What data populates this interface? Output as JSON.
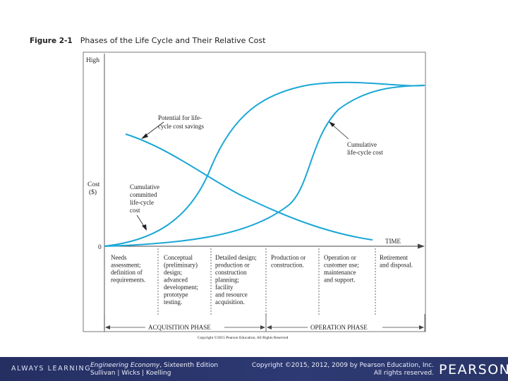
{
  "figure": {
    "number": "Figure 2-1",
    "title": "Phases of the Life Cycle and Their Relative Cost"
  },
  "axis": {
    "y_high": "High",
    "y_label_line1": "Cost",
    "y_label_line2": "($)",
    "y_zero": "0",
    "x_arrow_label": "TIME"
  },
  "annotations": {
    "potential": [
      "Potential for life-",
      "cycle cost savings"
    ],
    "cumulative_cost": [
      "Cumulative",
      "life-cycle cost"
    ],
    "committed": [
      "Cumulative",
      "committed",
      "life-cycle",
      "cost"
    ]
  },
  "phases": [
    {
      "lines": [
        "Needs",
        "assessment;",
        "definition of",
        "requirements."
      ]
    },
    {
      "lines": [
        "Conceptual",
        "(preliminary)",
        "design;",
        "advanced",
        "development;",
        "prototype",
        "testing."
      ]
    },
    {
      "lines": [
        "Detailed design;",
        "production or",
        "construction",
        "planning;",
        "facility",
        "and resource",
        "acquisition."
      ]
    },
    {
      "lines": [
        "Production or",
        "construction."
      ]
    },
    {
      "lines": [
        "Operation or",
        "customer use;",
        "maintenance",
        "and support."
      ]
    },
    {
      "lines": [
        "Retirement",
        "and disposal."
      ]
    }
  ],
  "phase_groups": {
    "acquisition": "ACQUISITION PHASE",
    "operation": "OPERATION PHASE"
  },
  "image_copyright": "Copyright ©2015 Pearson Education, All Rights Reserved",
  "colors": {
    "curve": "#1ba7d6",
    "frame": "#555555",
    "footer_bg": "#2b366c"
  },
  "footer": {
    "left_brand": "ALWAYS LEARNING",
    "book_title": "Engineering Economy",
    "book_edition": ", Sixteenth Edition",
    "authors": "Sullivan | Wicks | Koelling",
    "copyright_line1": "Copyright ©2015, 2012, 2009 by Pearson Education, Inc.",
    "copyright_line2": "All rights reserved.",
    "right_brand": "PEARSON"
  }
}
